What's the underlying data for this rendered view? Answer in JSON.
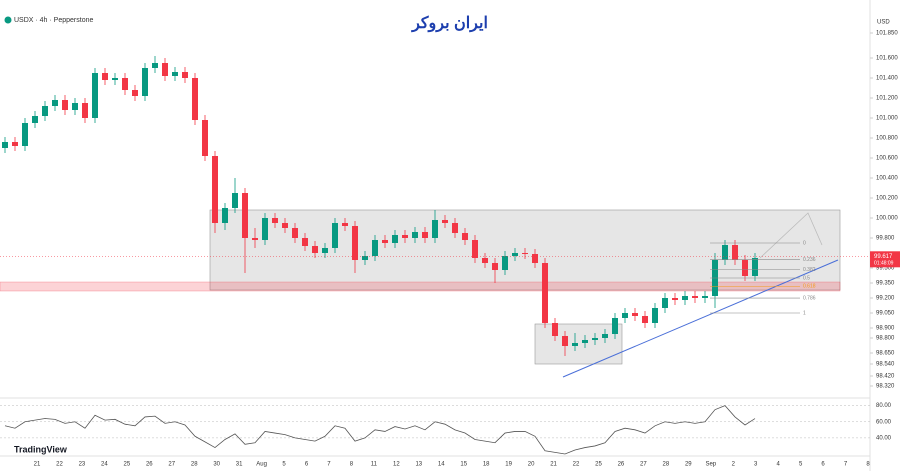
{
  "chart_data": {
    "type": "candlestick",
    "title": "USDX · 4h · Pepperstone",
    "brand": "ایران بروکر",
    "currency": "USD",
    "watermark": "TradingView",
    "open": [
      100.7,
      100.76,
      100.72,
      100.95,
      101.02,
      101.12,
      101.18,
      101.08,
      101.15,
      101.0,
      101.45,
      101.38,
      101.4,
      101.28,
      101.22,
      101.5,
      101.55,
      101.42,
      101.46,
      101.4,
      100.98,
      100.62,
      99.95,
      100.1,
      100.25,
      99.8,
      99.78,
      100.0,
      99.95,
      99.9,
      99.8,
      99.72,
      99.65,
      99.7,
      99.95,
      99.92,
      99.58,
      99.62,
      99.78,
      99.75,
      99.83,
      99.8,
      99.86,
      99.8,
      99.98,
      99.95,
      99.85,
      99.78,
      99.6,
      99.55,
      99.48,
      99.62,
      99.65,
      99.64,
      99.55,
      98.95,
      98.82,
      98.72,
      98.75,
      98.78,
      98.8,
      98.84,
      99.0,
      99.05,
      99.02,
      98.95,
      99.1,
      99.2,
      99.18,
      99.22,
      99.2,
      99.22,
      99.58,
      99.73,
      99.58,
      99.42
    ],
    "high": [
      100.81,
      100.81,
      101.0,
      101.07,
      101.17,
      101.23,
      101.23,
      101.2,
      101.2,
      101.5,
      101.5,
      101.45,
      101.45,
      101.33,
      101.55,
      101.62,
      101.6,
      101.51,
      101.51,
      101.45,
      101.03,
      100.67,
      100.15,
      100.4,
      100.3,
      99.9,
      100.05,
      100.05,
      100.0,
      99.95,
      99.85,
      99.77,
      99.75,
      100.0,
      100.0,
      99.97,
      99.67,
      99.83,
      99.83,
      99.88,
      99.88,
      99.91,
      99.91,
      100.08,
      100.03,
      100.0,
      99.9,
      99.83,
      99.65,
      99.6,
      99.67,
      99.7,
      99.7,
      99.69,
      99.6,
      99.0,
      98.87,
      98.85,
      98.83,
      98.85,
      98.89,
      99.05,
      99.1,
      99.1,
      99.07,
      99.15,
      99.25,
      99.25,
      99.27,
      99.27,
      99.27,
      99.65,
      99.78,
      99.78,
      99.63,
      99.65
    ],
    "low": [
      100.65,
      100.67,
      100.67,
      100.9,
      100.97,
      101.07,
      101.03,
      101.03,
      100.95,
      100.95,
      101.33,
      101.33,
      101.23,
      101.17,
      101.17,
      101.45,
      101.37,
      101.37,
      101.35,
      100.93,
      100.57,
      99.85,
      99.88,
      100.05,
      99.45,
      99.7,
      99.73,
      99.9,
      99.85,
      99.75,
      99.67,
      99.6,
      99.6,
      99.65,
      99.87,
      99.45,
      99.53,
      99.57,
      99.7,
      99.7,
      99.75,
      99.75,
      99.75,
      99.75,
      99.9,
      99.8,
      99.73,
      99.55,
      99.5,
      99.35,
      99.43,
      99.57,
      99.59,
      99.5,
      98.9,
      98.77,
      98.62,
      98.67,
      98.7,
      98.73,
      98.75,
      98.79,
      98.95,
      98.97,
      98.9,
      98.9,
      99.05,
      99.13,
      99.13,
      99.15,
      99.15,
      99.1,
      99.53,
      99.53,
      99.37,
      99.37
    ],
    "close": [
      100.76,
      100.72,
      100.95,
      101.02,
      101.12,
      101.18,
      101.08,
      101.15,
      101.0,
      101.45,
      101.38,
      101.4,
      101.28,
      101.22,
      101.5,
      101.55,
      101.42,
      101.46,
      101.4,
      100.98,
      100.62,
      99.95,
      100.1,
      100.25,
      99.8,
      99.78,
      100.0,
      99.95,
      99.9,
      99.8,
      99.72,
      99.65,
      99.7,
      99.95,
      99.92,
      99.58,
      99.62,
      99.78,
      99.75,
      99.83,
      99.8,
      99.86,
      99.8,
      99.98,
      99.95,
      99.85,
      99.78,
      99.6,
      99.55,
      99.48,
      99.62,
      99.65,
      99.64,
      99.55,
      98.95,
      98.82,
      98.72,
      98.75,
      98.78,
      98.8,
      98.84,
      99.0,
      99.05,
      99.02,
      98.95,
      99.1,
      99.2,
      99.18,
      99.22,
      99.2,
      99.22,
      99.58,
      99.73,
      99.58,
      99.42,
      99.6
    ],
    "up_color": "#089981",
    "down_color": "#f23645",
    "ylim": [
      98.23,
      102.08
    ],
    "yticks": [
      {
        "value": 101.85,
        "label": "101.850"
      },
      {
        "value": 101.6,
        "label": "101.600"
      },
      {
        "value": 101.4,
        "label": "101.400"
      },
      {
        "value": 101.2,
        "label": "101.200"
      },
      {
        "value": 101,
        "label": "101.000"
      },
      {
        "value": 100.8,
        "label": "100.800"
      },
      {
        "value": 100.6,
        "label": "100.600"
      },
      {
        "value": 100.4,
        "label": "100.400"
      },
      {
        "value": 100.2,
        "label": "100.200"
      },
      {
        "value": 100,
        "label": "100.000"
      },
      {
        "value": 99.8,
        "label": "99.800"
      },
      {
        "value": 99.5,
        "label": "99.500"
      },
      {
        "value": 99.35,
        "label": "99.350"
      },
      {
        "value": 99.2,
        "label": "99.200"
      },
      {
        "value": 99.05,
        "label": "99.050"
      },
      {
        "value": 98.9,
        "label": "98.900"
      },
      {
        "value": 98.8,
        "label": "98.800"
      },
      {
        "value": 98.65,
        "label": "98.650"
      },
      {
        "value": 98.54,
        "label": "98.540"
      },
      {
        "value": 98.42,
        "label": "98.420"
      },
      {
        "value": 98.32,
        "label": "98.320"
      }
    ],
    "x_labels": [
      "21",
      "22",
      "23",
      "24",
      "25",
      "26",
      "27",
      "28",
      "30",
      "31",
      "Aug",
      "5",
      "6",
      "7",
      "8",
      "11",
      "12",
      "13",
      "14",
      "15",
      "18",
      "19",
      "20",
      "21",
      "22",
      "25",
      "26",
      "27",
      "28",
      "29",
      "Sep",
      "2",
      "3",
      "4",
      "5",
      "6",
      "7",
      "8"
    ],
    "last_price": 99.617,
    "countdown": "01:48:09",
    "last_price_color": "#f23645",
    "fib": {
      "from": 99.75,
      "to": 99.05,
      "levels": [
        0,
        0.236,
        0.382,
        0.5,
        0.618,
        0.786,
        1
      ]
    },
    "rsi": {
      "color": "#555555",
      "ylim": [
        20,
        87
      ],
      "yticks": [
        {
          "value": 80,
          "label": "80.00"
        },
        {
          "value": 60,
          "label": "60.00"
        },
        {
          "value": 40,
          "label": "40.00"
        }
      ],
      "values": [
        55,
        52,
        60,
        62,
        64,
        63,
        58,
        60,
        52,
        68,
        62,
        63,
        57,
        55,
        66,
        67,
        58,
        60,
        56,
        42,
        35,
        28,
        38,
        45,
        32,
        34,
        48,
        46,
        44,
        40,
        38,
        36,
        42,
        55,
        52,
        36,
        40,
        50,
        48,
        54,
        51,
        55,
        50,
        60,
        57,
        50,
        46,
        38,
        36,
        34,
        46,
        48,
        48,
        42,
        24,
        22,
        20,
        25,
        28,
        30,
        34,
        48,
        52,
        50,
        46,
        55,
        60,
        58,
        60,
        58,
        60,
        75,
        80,
        66,
        56,
        64
      ]
    }
  }
}
